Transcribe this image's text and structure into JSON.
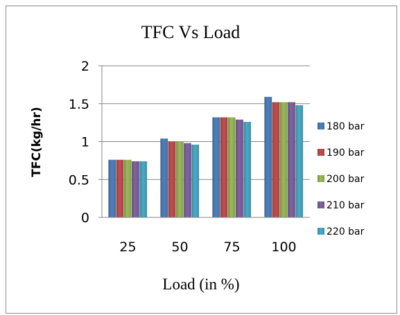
{
  "chart_data": {
    "type": "bar",
    "title": "TFC  Vs  Load",
    "xlabel": "Load (in %)",
    "ylabel": "TFC(kg/hr)",
    "categories": [
      "25",
      "50",
      "75",
      "100"
    ],
    "ylim": [
      0,
      2
    ],
    "yticks": [
      "0",
      "0.5",
      "1",
      "1.5",
      "2"
    ],
    "grid": true,
    "legend_position": "right",
    "series": [
      {
        "name": "180 bar",
        "color": "#4f81bd",
        "values": [
          0.76,
          1.04,
          1.32,
          1.59
        ]
      },
      {
        "name": "190 bar",
        "color": "#c0504d",
        "values": [
          0.76,
          1.0,
          1.32,
          1.52
        ]
      },
      {
        "name": "200 bar",
        "color": "#9bbb59",
        "values": [
          0.76,
          1.0,
          1.32,
          1.52
        ]
      },
      {
        "name": "210 bar",
        "color": "#8064a2",
        "values": [
          0.74,
          0.98,
          1.29,
          1.52
        ]
      },
      {
        "name": "220 bar",
        "color": "#4bacc6",
        "values": [
          0.74,
          0.96,
          1.26,
          1.48
        ]
      }
    ]
  }
}
